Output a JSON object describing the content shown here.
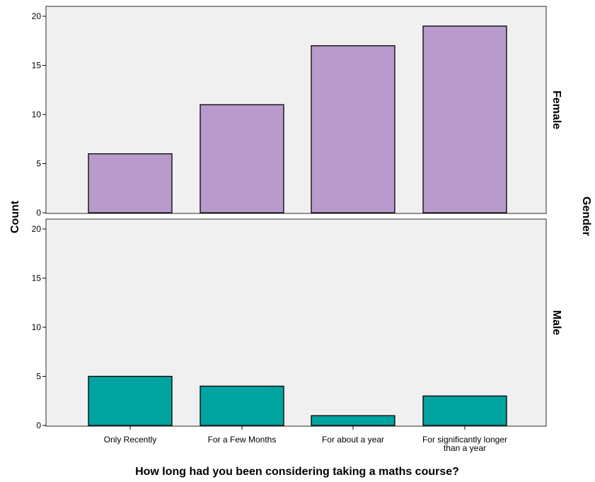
{
  "chart_data": {
    "type": "bar",
    "layout": "faceted-rows",
    "categories": [
      "Only Recently",
      "For a Few Months",
      "For about a year",
      "For significantly longer than a year"
    ],
    "category_labels": [
      [
        "Only Recently"
      ],
      [
        "For a Few Months"
      ],
      [
        "For about a year"
      ],
      [
        "For significantly longer",
        "than a year"
      ]
    ],
    "facet_variable": "Gender",
    "panels": [
      {
        "name": "Female",
        "color": "#b89acc",
        "values": [
          6,
          11,
          17,
          19
        ]
      },
      {
        "name": "Male",
        "color": "#00a3a0",
        "values": [
          5,
          4,
          1,
          3
        ]
      }
    ],
    "xlabel": "How long had you been considering taking a maths course?",
    "ylabel": "Count",
    "ylim": [
      0,
      20
    ],
    "yticks": [
      0,
      5,
      10,
      15,
      20
    ],
    "panel_background": "#f0f0f0",
    "grid": false
  }
}
